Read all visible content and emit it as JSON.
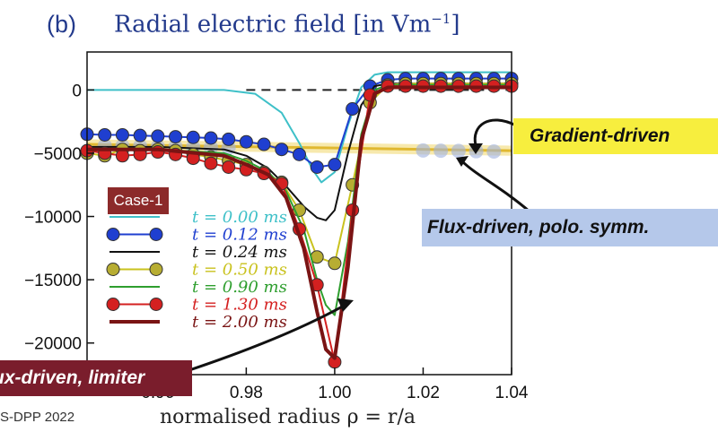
{
  "panel_label": "(b)",
  "footer_text": "S-DPP 2022",
  "case_label": "Case-1",
  "callouts": {
    "gradient": "Gradient-driven",
    "flux_poloidal": "Flux-driven, polo. symm.",
    "flux_limiter": "ux-driven, limiter"
  },
  "chart_data": {
    "type": "line",
    "title": "Radial electric field [in Vm",
    "title_exp": "−1",
    "title_end": "]",
    "xlabel": "normalised radius ρ = r/a",
    "xlim": [
      0.944,
      1.04
    ],
    "ylim": [
      -22500,
      3000
    ],
    "xticks": [
      0.96,
      0.98,
      1.0,
      1.02,
      1.04
    ],
    "xtick_labels": [
      "0.96",
      "0.98",
      "1.00",
      "1.02",
      "1.04"
    ],
    "yticks": [
      0,
      -5000,
      -10000,
      -15000,
      -20000
    ],
    "ytick_labels": [
      "0",
      "−5000",
      "−10000",
      "−15000",
      "−20000"
    ],
    "grid": false,
    "legend_position": "lower-left",
    "series": [
      {
        "name": "t = 0.00 ms",
        "color": "#3ec0c8",
        "marker": false,
        "width": 2,
        "x": [
          0.944,
          0.975,
          0.982,
          0.988,
          0.992,
          0.995,
          0.997,
          1.0,
          1.003,
          1.006,
          1.009,
          1.012,
          1.02,
          1.04
        ],
        "y": [
          0,
          0,
          -300,
          -1800,
          -4200,
          -6300,
          -7300,
          -6500,
          -2800,
          200,
          1200,
          1400,
          1400,
          1400
        ]
      },
      {
        "name": "t = 0.12 ms",
        "color": "#1f3fd0",
        "marker": true,
        "width": 2,
        "x": [
          0.944,
          0.948,
          0.952,
          0.956,
          0.96,
          0.964,
          0.968,
          0.972,
          0.976,
          0.98,
          0.984,
          0.988,
          0.992,
          0.996,
          1.0,
          1.004,
          1.008,
          1.012,
          1.016,
          1.02,
          1.024,
          1.028,
          1.032,
          1.036,
          1.04
        ],
        "y": [
          -3500,
          -3550,
          -3550,
          -3600,
          -3650,
          -3700,
          -3750,
          -3800,
          -3900,
          -4100,
          -4300,
          -4700,
          -5100,
          -6100,
          -5900,
          -1500,
          300,
          800,
          900,
          900,
          900,
          900,
          900,
          900,
          900
        ]
      },
      {
        "name": "t = 0.24 ms",
        "color": "#111111",
        "marker": false,
        "width": 2,
        "x": [
          0.944,
          0.96,
          0.975,
          0.98,
          0.985,
          0.989,
          0.993,
          0.996,
          0.998,
          1.0,
          1.003,
          1.006,
          1.009,
          1.012,
          1.02,
          1.04
        ],
        "y": [
          -4500,
          -4500,
          -4700,
          -5200,
          -6200,
          -7600,
          -9200,
          -10100,
          -10300,
          -9500,
          -5000,
          -1200,
          300,
          500,
          500,
          500
        ]
      },
      {
        "name": "t = 0.50 ms",
        "color": "#c9c21e",
        "marker": true,
        "markerColor": "#b7ad32",
        "width": 2,
        "x": [
          0.944,
          0.948,
          0.952,
          0.956,
          0.96,
          0.964,
          0.968,
          0.972,
          0.976,
          0.98,
          0.984,
          0.988,
          0.992,
          0.996,
          1.0,
          1.004,
          1.008,
          1.012,
          1.016,
          1.02,
          1.024,
          1.028,
          1.032,
          1.036,
          1.04
        ],
        "y": [
          -5000,
          -5200,
          -4700,
          -4800,
          -4700,
          -4800,
          -5100,
          -5300,
          -5600,
          -5900,
          -6500,
          -7300,
          -9500,
          -13200,
          -13700,
          -7500,
          -1000,
          400,
          500,
          500,
          500,
          500,
          500,
          500,
          500
        ]
      },
      {
        "name": "t = 0.90 ms",
        "color": "#2e9e2e",
        "marker": false,
        "width": 2,
        "x": [
          0.944,
          0.96,
          0.975,
          0.98,
          0.985,
          0.989,
          0.993,
          0.996,
          0.998,
          1.0,
          1.003,
          1.006,
          1.009,
          1.012,
          1.02,
          1.04
        ],
        "y": [
          -4700,
          -4700,
          -5000,
          -5600,
          -6500,
          -8000,
          -11000,
          -15000,
          -17000,
          -17800,
          -12000,
          -3500,
          0,
          400,
          400,
          400
        ]
      },
      {
        "name": "t = 1.30 ms",
        "color": "#d42020",
        "marker": true,
        "width": 2,
        "x": [
          0.944,
          0.948,
          0.952,
          0.956,
          0.96,
          0.964,
          0.968,
          0.972,
          0.976,
          0.98,
          0.984,
          0.988,
          0.992,
          0.996,
          1.0,
          1.004,
          1.008,
          1.012,
          1.016,
          1.02,
          1.024,
          1.028,
          1.032,
          1.036,
          1.04
        ],
        "y": [
          -4800,
          -5000,
          -5200,
          -5100,
          -4900,
          -5100,
          -5400,
          -5800,
          -6100,
          -6300,
          -6600,
          -7400,
          -11000,
          -15400,
          -21500,
          -9500,
          -400,
          300,
          300,
          300,
          300,
          300,
          300,
          300,
          300
        ]
      },
      {
        "name": "t = 2.00 ms",
        "color": "#7a1414",
        "marker": false,
        "width": 4,
        "x": [
          0.944,
          0.96,
          0.975,
          0.98,
          0.985,
          0.989,
          0.993,
          0.996,
          0.998,
          1.0,
          1.003,
          1.006,
          1.009,
          1.012,
          1.02,
          1.04
        ],
        "y": [
          -4700,
          -4700,
          -5200,
          -5900,
          -6700,
          -8500,
          -12500,
          -17500,
          -20500,
          -21200,
          -14000,
          -4000,
          -300,
          200,
          200,
          200
        ]
      }
    ]
  }
}
